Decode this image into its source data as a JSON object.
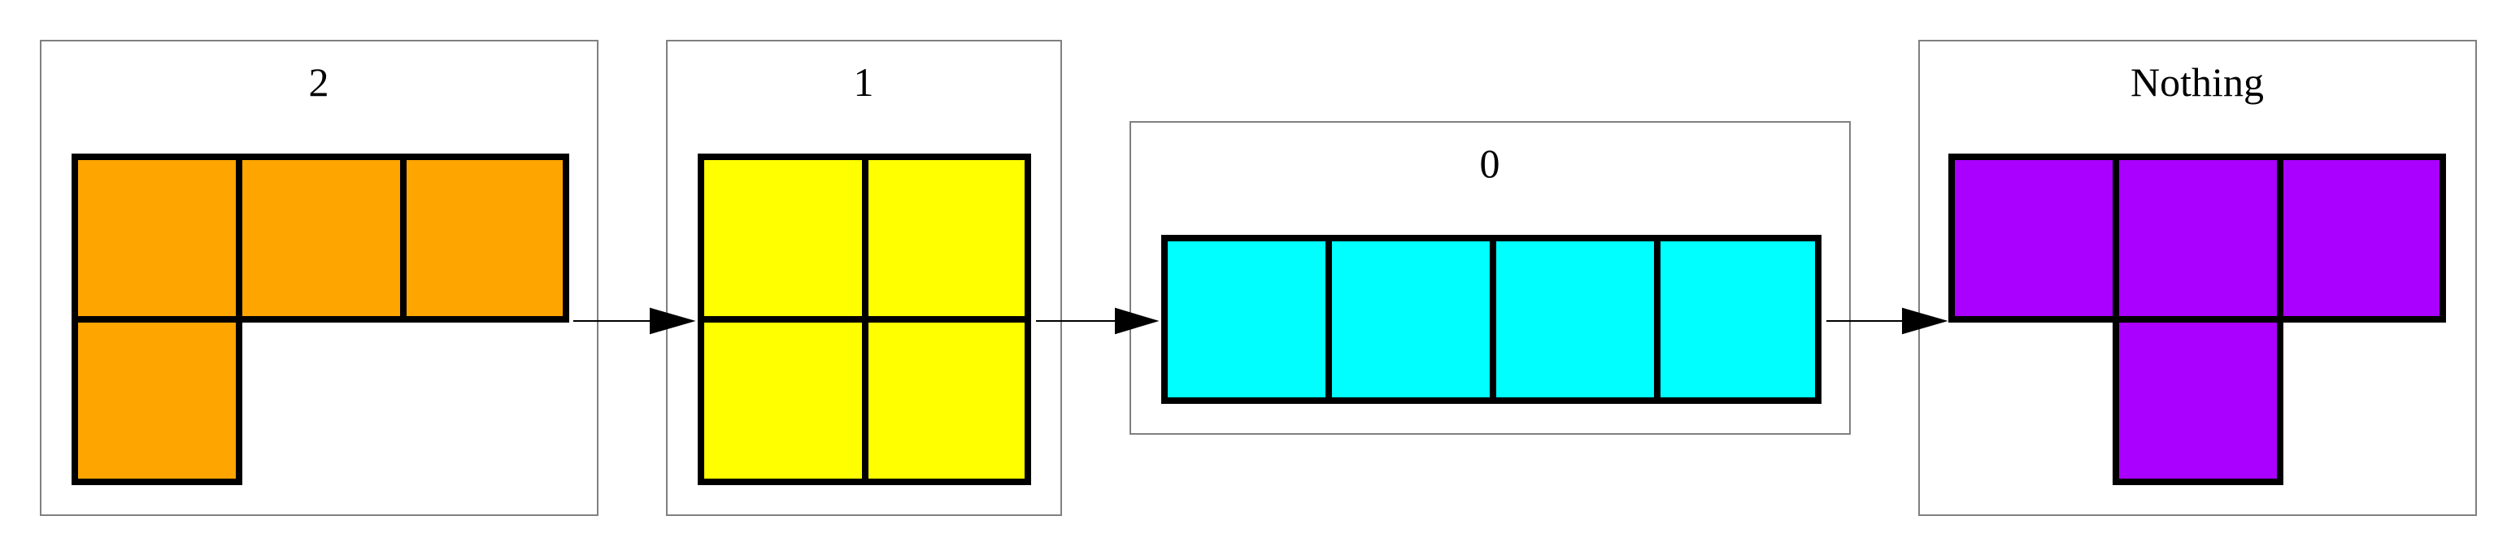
{
  "nodes": [
    {
      "id": "state-2",
      "label": "2",
      "piece": "L",
      "color": "#FFA500"
    },
    {
      "id": "state-1",
      "label": "1",
      "piece": "O",
      "color": "#FFFF00"
    },
    {
      "id": "state-0",
      "label": "0",
      "piece": "I",
      "color": "#00FFFF"
    },
    {
      "id": "state-nothing",
      "label": "Nothing",
      "piece": "T",
      "color": "#AA00FF"
    }
  ],
  "edges": [
    {
      "from": "state-2",
      "to": "state-1"
    },
    {
      "from": "state-1",
      "to": "state-0"
    },
    {
      "from": "state-0",
      "to": "state-nothing"
    }
  ]
}
